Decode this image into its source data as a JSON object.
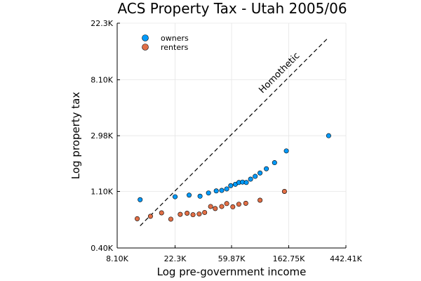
{
  "chart_data": {
    "type": "scatter",
    "title": "ACS Property Tax - Utah 2005/06",
    "xlabel": "Log pre-government income",
    "ylabel": "Log property tax",
    "x_scale": "log",
    "y_scale": "log",
    "xlim": [
      8100,
      442410
    ],
    "ylim": [
      400,
      22300
    ],
    "x_ticks": [
      8100,
      22300,
      59870,
      162750,
      442410
    ],
    "x_tick_labels": [
      "8.10K",
      "22.3K",
      "59.87K",
      "162.75K",
      "442.41K"
    ],
    "y_ticks": [
      400,
      1100,
      2980,
      8100,
      22300
    ],
    "y_tick_labels": [
      "0.40K",
      "1.10K",
      "2.98K",
      "8.10K",
      "22.3K"
    ],
    "grid": true,
    "legend_position": "top-left",
    "annotation": {
      "text": "Homothetic",
      "line_points": [
        [
          12100,
          595
        ],
        [
          325000,
          17200
        ]
      ]
    },
    "series": [
      {
        "name": "owners",
        "color": "#009AFA",
        "points": [
          [
            12100,
            949
          ],
          [
            22300,
            1000
          ],
          [
            28500,
            1030
          ],
          [
            34500,
            1010
          ],
          [
            40000,
            1070
          ],
          [
            45800,
            1110
          ],
          [
            50400,
            1120
          ],
          [
            55000,
            1150
          ],
          [
            59000,
            1220
          ],
          [
            64000,
            1250
          ],
          [
            68000,
            1290
          ],
          [
            72500,
            1300
          ],
          [
            77500,
            1290
          ],
          [
            83500,
            1370
          ],
          [
            90500,
            1440
          ],
          [
            98500,
            1530
          ],
          [
            110000,
            1650
          ],
          [
            127000,
            1840
          ],
          [
            156000,
            2270
          ],
          [
            327000,
            2980
          ]
        ]
      },
      {
        "name": "renters",
        "color": "#E26F46",
        "points": [
          [
            11500,
            675
          ],
          [
            14500,
            705
          ],
          [
            17600,
            750
          ],
          [
            20700,
            670
          ],
          [
            24400,
            730
          ],
          [
            27500,
            745
          ],
          [
            30500,
            725
          ],
          [
            34000,
            735
          ],
          [
            37400,
            755
          ],
          [
            41500,
            840
          ],
          [
            45000,
            810
          ],
          [
            50400,
            840
          ],
          [
            55000,
            885
          ],
          [
            61200,
            835
          ],
          [
            68000,
            875
          ],
          [
            76800,
            890
          ],
          [
            98500,
            940
          ],
          [
            151000,
            1100
          ]
        ]
      }
    ]
  }
}
